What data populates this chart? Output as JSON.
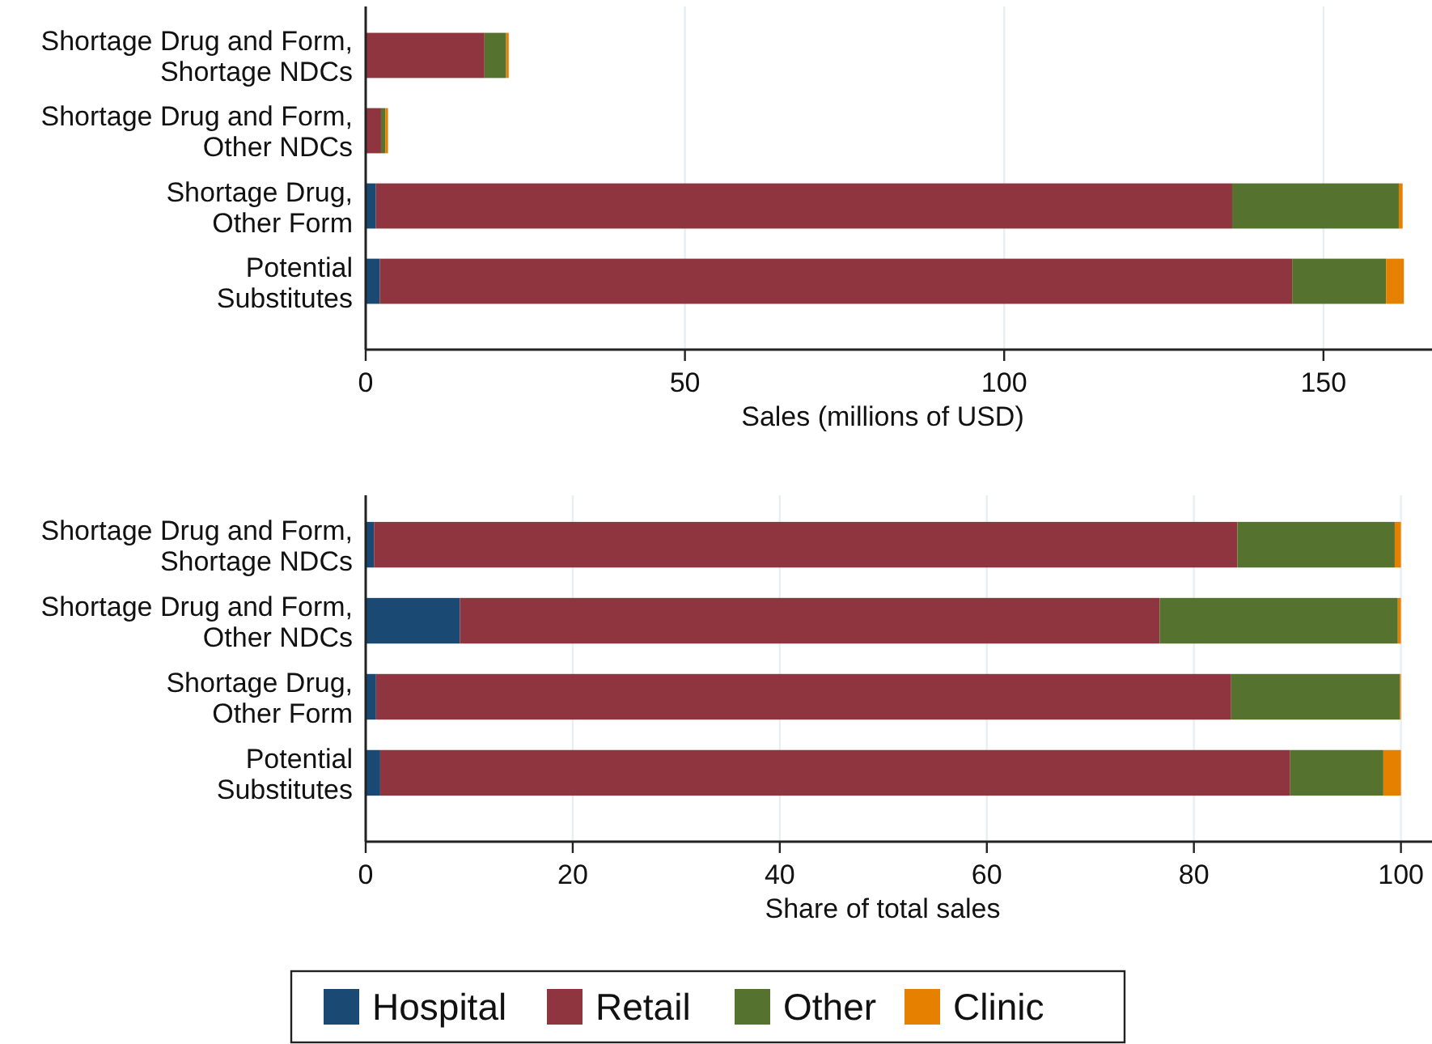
{
  "chart_data": [
    {
      "type": "bar",
      "orientation": "horizontal",
      "stacked": true,
      "xlabel": "Sales (millions of USD)",
      "categories": [
        "Shortage Drug and Form,\nShortage NDCs",
        "Shortage Drug and Form,\nOther NDCs",
        "Shortage Drug,\nOther Form",
        "Potential\nSubstitutes"
      ],
      "xlim": [
        0,
        167
      ],
      "xticks": [
        0,
        50,
        100,
        150
      ],
      "grid": "x",
      "legend": "bottom",
      "series": [
        {
          "name": "Hospital",
          "color": "#1a4a73",
          "values": [
            0.1,
            0.1,
            1.6,
            2.2
          ]
        },
        {
          "name": "Retail",
          "color": "#8e353f",
          "values": [
            18.5,
            2.3,
            134.1,
            142.9
          ]
        },
        {
          "name": "Other",
          "color": "#55722f",
          "values": [
            3.4,
            0.7,
            26.1,
            14.7
          ]
        },
        {
          "name": "Clinic",
          "color": "#e58000",
          "values": [
            0.4,
            0.4,
            0.6,
            2.8
          ]
        }
      ]
    },
    {
      "type": "bar",
      "orientation": "horizontal",
      "stacked": true,
      "xlabel": "Share of total sales",
      "categories": [
        "Shortage Drug and Form,\nShortage NDCs",
        "Shortage Drug and Form,\nOther NDCs",
        "Shortage Drug,\nOther Form",
        "Potential\nSubstitutes"
      ],
      "xlim": [
        0,
        103
      ],
      "xticks": [
        0,
        20,
        40,
        60,
        80,
        100
      ],
      "grid": "x",
      "legend": "bottom",
      "series": [
        {
          "name": "Hospital",
          "color": "#1a4a73",
          "values": [
            0.8,
            9.1,
            1.0,
            1.4
          ]
        },
        {
          "name": "Retail",
          "color": "#8e353f",
          "values": [
            83.4,
            67.6,
            82.6,
            87.9
          ]
        },
        {
          "name": "Other",
          "color": "#55722f",
          "values": [
            15.2,
            23.0,
            16.3,
            9.0
          ]
        },
        {
          "name": "Clinic",
          "color": "#e58000",
          "values": [
            0.6,
            0.3,
            0.1,
            1.7
          ]
        }
      ]
    }
  ]
}
